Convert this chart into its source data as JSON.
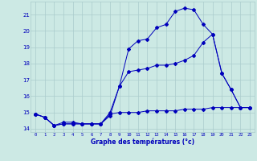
{
  "bg_color": "#cce9e4",
  "grid_color": "#aacccc",
  "line_color": "#0000bb",
  "hours": [
    0,
    1,
    2,
    3,
    4,
    5,
    6,
    7,
    8,
    9,
    10,
    11,
    12,
    13,
    14,
    15,
    16,
    17,
    18,
    19,
    20,
    21,
    22,
    23
  ],
  "temp_actual": [
    14.9,
    14.7,
    14.2,
    14.4,
    14.4,
    14.3,
    14.3,
    14.3,
    14.8,
    16.6,
    18.9,
    19.4,
    19.5,
    20.2,
    20.4,
    21.2,
    21.4,
    21.3,
    20.4,
    19.8,
    17.4,
    16.4,
    15.3,
    15.3
  ],
  "temp_min": [
    14.9,
    14.7,
    14.2,
    14.3,
    14.3,
    14.3,
    14.3,
    14.3,
    14.9,
    15.0,
    15.0,
    15.0,
    15.1,
    15.1,
    15.1,
    15.1,
    15.2,
    15.2,
    15.2,
    15.3,
    15.3,
    15.3,
    15.3,
    15.3
  ],
  "temp_max": [
    14.9,
    14.7,
    14.2,
    14.3,
    14.3,
    14.3,
    14.3,
    14.3,
    15.0,
    16.6,
    17.5,
    17.6,
    17.7,
    17.9,
    17.9,
    18.0,
    18.2,
    18.5,
    19.3,
    19.8,
    17.4,
    16.4,
    15.3,
    15.3
  ],
  "ylim": [
    13.8,
    21.8
  ],
  "yticks": [
    14,
    15,
    16,
    17,
    18,
    19,
    20,
    21
  ],
  "xlabel": "Graphe des températures (°c)"
}
